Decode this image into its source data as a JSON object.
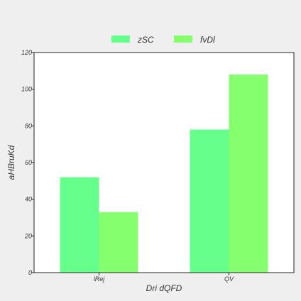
{
  "chart_data": {
    "type": "bar",
    "categories": [
      "lRej",
      "QV"
    ],
    "series": [
      {
        "name": "zSC",
        "values": [
          52,
          78
        ],
        "color": "#66ff8c"
      },
      {
        "name": "fvDl",
        "values": [
          33,
          108
        ],
        "color": "#85ff6e"
      }
    ],
    "xlabel": "Dri dQFD",
    "ylabel": "aHBruKd",
    "ylim": [
      0,
      120
    ],
    "yticks": [
      0,
      20,
      40,
      60,
      80,
      100,
      120
    ],
    "grid": false,
    "legend_position": "top-center",
    "background": "#efefef",
    "plot_background": "#ffffff"
  }
}
